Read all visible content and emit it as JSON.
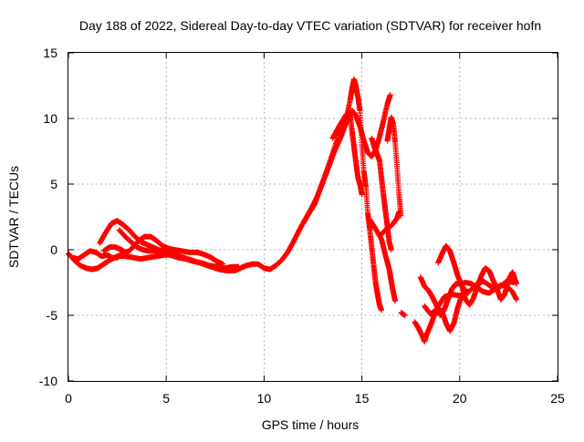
{
  "chart_data": {
    "type": "scatter",
    "title": "Day 188 of 2022, Sidereal Day-to-day VTEC variation (SDTVAR) for receiver hofn",
    "xlabel": "GPS time / hours",
    "ylabel": "SDTVAR / TECUs",
    "xlim": [
      0,
      25
    ],
    "ylim": [
      -10,
      15
    ],
    "xticks": [
      0,
      5,
      10,
      15,
      20,
      25
    ],
    "yticks": [
      -10,
      -5,
      0,
      5,
      10,
      15
    ],
    "xtick_labels": [
      "0",
      "5",
      "10",
      "15",
      "20",
      "25"
    ],
    "ytick_labels": [
      "-10",
      "-5",
      "0",
      "5",
      "10",
      "15"
    ],
    "grid": true,
    "marker": "+",
    "series": [
      {
        "name": "SDTVAR hofn",
        "color": "#ff0000",
        "segments": [
          [
            [
              0.0,
              -0.3
            ],
            [
              0.3,
              -0.8
            ],
            [
              0.6,
              -1.2
            ],
            [
              0.9,
              -1.4
            ],
            [
              1.2,
              -1.5
            ],
            [
              1.5,
              -1.4
            ],
            [
              1.8,
              -1.1
            ],
            [
              2.1,
              -0.8
            ],
            [
              2.5,
              -0.5
            ],
            [
              2.9,
              -0.5
            ],
            [
              3.3,
              -0.6
            ],
            [
              3.7,
              -0.7
            ],
            [
              4.1,
              -0.6
            ],
            [
              4.5,
              -0.5
            ],
            [
              4.9,
              -0.4
            ],
            [
              5.3,
              -0.4
            ],
            [
              5.7,
              -0.5
            ],
            [
              6.1,
              -0.7
            ],
            [
              6.5,
              -0.9
            ],
            [
              6.9,
              -1.1
            ],
            [
              7.3,
              -1.3
            ],
            [
              7.7,
              -1.5
            ],
            [
              8.1,
              -1.6
            ],
            [
              8.5,
              -1.6
            ],
            [
              8.8,
              -1.4
            ],
            [
              9.1,
              -1.2
            ],
            [
              9.4,
              -1.1
            ],
            [
              9.7,
              -1.1
            ],
            [
              10.0,
              -1.4
            ],
            [
              10.3,
              -1.5
            ],
            [
              10.6,
              -1.2
            ],
            [
              10.9,
              -0.8
            ],
            [
              11.2,
              -0.2
            ],
            [
              11.5,
              0.6
            ],
            [
              11.8,
              1.5
            ],
            [
              12.1,
              2.3
            ],
            [
              12.4,
              3.1
            ],
            [
              12.7,
              4.0
            ],
            [
              13.0,
              5.1
            ],
            [
              13.3,
              6.3
            ],
            [
              13.6,
              7.5
            ],
            [
              13.9,
              8.5
            ],
            [
              14.1,
              9.3
            ],
            [
              14.3,
              10.0
            ],
            [
              14.5,
              10.6
            ],
            [
              14.7,
              10.2
            ],
            [
              14.9,
              9.4
            ],
            [
              15.1,
              8.3
            ],
            [
              15.3,
              7.4
            ],
            [
              15.5,
              7.1
            ],
            [
              15.7,
              7.6
            ],
            [
              15.9,
              8.6
            ],
            [
              16.1,
              9.8
            ],
            [
              16.3,
              11.1
            ],
            [
              16.45,
              11.8
            ]
          ],
          [
            [
              0.2,
              -0.6
            ],
            [
              0.5,
              -0.7
            ],
            [
              0.8,
              -0.4
            ],
            [
              1.1,
              -0.1
            ],
            [
              1.4,
              -0.2
            ],
            [
              1.7,
              -0.5
            ],
            [
              2.0,
              -0.4
            ],
            [
              2.2,
              -0.6
            ],
            [
              2.5,
              -0.6
            ],
            [
              2.7,
              -0.3
            ]
          ],
          [
            [
              1.6,
              0.5
            ],
            [
              1.9,
              1.3
            ],
            [
              2.2,
              2.0
            ],
            [
              2.5,
              2.2
            ],
            [
              2.8,
              1.9
            ],
            [
              3.1,
              1.5
            ],
            [
              3.4,
              1.0
            ],
            [
              3.7,
              0.6
            ],
            [
              4.0,
              0.4
            ],
            [
              4.3,
              0.2
            ],
            [
              4.6,
              0.0
            ],
            [
              4.9,
              -0.2
            ],
            [
              5.2,
              -0.4
            ],
            [
              5.6,
              -0.6
            ],
            [
              6.0,
              -0.7
            ],
            [
              6.4,
              -0.9
            ],
            [
              6.8,
              -1.0
            ],
            [
              7.2,
              -1.2
            ],
            [
              7.6,
              -1.3
            ],
            [
              8.0,
              -1.4
            ],
            [
              8.4,
              -1.3
            ],
            [
              8.7,
              -1.3
            ]
          ],
          [
            [
              1.8,
              -0.1
            ],
            [
              2.1,
              0.2
            ],
            [
              2.4,
              0.2
            ],
            [
              2.7,
              0.0
            ],
            [
              2.9,
              -0.2
            ],
            [
              3.1,
              -0.1
            ],
            [
              3.3,
              0.2
            ],
            [
              3.6,
              0.7
            ],
            [
              3.9,
              1.0
            ],
            [
              4.2,
              1.0
            ],
            [
              4.5,
              0.7
            ],
            [
              4.8,
              0.3
            ],
            [
              5.1,
              0.1
            ],
            [
              5.4,
              0.0
            ],
            [
              5.8,
              -0.1
            ],
            [
              6.2,
              -0.2
            ],
            [
              6.6,
              -0.2
            ],
            [
              7.0,
              -0.4
            ],
            [
              7.3,
              -0.6
            ],
            [
              7.6,
              -0.9
            ],
            [
              7.9,
              -1.1
            ]
          ],
          [
            [
              2.6,
              1.5
            ],
            [
              2.9,
              1.0
            ],
            [
              3.2,
              0.6
            ],
            [
              3.5,
              0.2
            ],
            [
              3.8,
              0.0
            ],
            [
              4.1,
              -0.1
            ],
            [
              4.4,
              -0.1
            ],
            [
              4.7,
              -0.1
            ],
            [
              5.0,
              -0.2
            ],
            [
              5.5,
              -0.3
            ]
          ],
          [
            [
              12.0,
              2.0
            ],
            [
              12.3,
              2.8
            ],
            [
              12.6,
              3.5
            ],
            [
              12.9,
              4.8
            ],
            [
              13.2,
              6.0
            ],
            [
              13.5,
              7.3
            ],
            [
              13.8,
              8.7
            ],
            [
              14.0,
              9.8
            ],
            [
              14.2,
              10.3
            ],
            [
              14.4,
              10.4
            ],
            [
              14.5,
              9.0
            ],
            [
              14.6,
              7.8
            ],
            [
              14.7,
              6.6
            ],
            [
              14.8,
              5.5
            ],
            [
              14.9,
              5.0
            ],
            [
              15.0,
              4.2
            ]
          ],
          [
            [
              13.5,
              8.5
            ],
            [
              13.8,
              9.3
            ],
            [
              14.0,
              9.8
            ],
            [
              14.2,
              10.0
            ],
            [
              14.4,
              11.4
            ],
            [
              14.5,
              12.3
            ],
            [
              14.6,
              13.0
            ],
            [
              14.7,
              12.4
            ],
            [
              14.8,
              11.6
            ],
            [
              14.9,
              10.6
            ],
            [
              15.0,
              8.0
            ],
            [
              15.1,
              6.0
            ],
            [
              15.2,
              4.8
            ],
            [
              15.3,
              2.8
            ],
            [
              15.4,
              1.6
            ],
            [
              15.5,
              0.2
            ],
            [
              15.6,
              -1.2
            ],
            [
              15.7,
              -2.5
            ],
            [
              15.8,
              -3.4
            ],
            [
              15.9,
              -4.2
            ],
            [
              16.0,
              -4.6
            ]
          ],
          [
            [
              15.5,
              8.5
            ],
            [
              15.6,
              8.0
            ],
            [
              15.7,
              7.6
            ],
            [
              15.8,
              7.2
            ],
            [
              15.9,
              6.8
            ],
            [
              16.0,
              5.5
            ],
            [
              16.1,
              4.2
            ],
            [
              16.2,
              3.0
            ],
            [
              16.3,
              1.8
            ],
            [
              16.4,
              0.6
            ],
            [
              16.5,
              0.0
            ]
          ],
          [
            [
              15.4,
              2.3
            ],
            [
              15.7,
              1.6
            ],
            [
              16.0,
              0.8
            ],
            [
              16.2,
              -0.4
            ],
            [
              16.4,
              -1.5
            ],
            [
              16.5,
              -2.4
            ],
            [
              16.6,
              -3.2
            ],
            [
              16.7,
              -3.9
            ]
          ],
          [
            [
              16.0,
              1.2
            ],
            [
              16.2,
              1.5
            ],
            [
              16.4,
              1.7
            ],
            [
              16.6,
              2.0
            ],
            [
              16.8,
              2.4
            ],
            [
              16.9,
              2.9
            ]
          ],
          [
            [
              16.3,
              8.3
            ],
            [
              16.4,
              9.2
            ],
            [
              16.5,
              10.1
            ],
            [
              16.6,
              9.6
            ],
            [
              16.7,
              8.2
            ],
            [
              16.8,
              6.2
            ],
            [
              16.9,
              4.2
            ],
            [
              17.0,
              2.6
            ]
          ],
          [
            [
              17.0,
              -4.8
            ],
            [
              17.2,
              -5.0
            ]
          ],
          [
            [
              17.7,
              -5.5
            ],
            [
              17.9,
              -6.0
            ],
            [
              18.1,
              -6.6
            ],
            [
              18.2,
              -7.0
            ],
            [
              18.3,
              -6.5
            ],
            [
              18.5,
              -5.8
            ],
            [
              18.7,
              -5.0
            ],
            [
              18.9,
              -4.5
            ],
            [
              19.1,
              -4.7
            ],
            [
              19.3,
              -5.6
            ],
            [
              19.5,
              -6.2
            ],
            [
              19.7,
              -5.6
            ],
            [
              19.9,
              -4.4
            ],
            [
              20.1,
              -3.5
            ],
            [
              20.3,
              -3.0
            ]
          ],
          [
            [
              18.0,
              -2.1
            ],
            [
              18.2,
              -2.8
            ],
            [
              18.4,
              -3.1
            ],
            [
              18.6,
              -3.6
            ],
            [
              18.8,
              -4.2
            ],
            [
              19.0,
              -5.0
            ],
            [
              19.2,
              -4.6
            ],
            [
              19.4,
              -3.8
            ],
            [
              19.6,
              -3.0
            ],
            [
              19.8,
              -2.6
            ],
            [
              20.0,
              -2.6
            ],
            [
              20.3,
              -2.5
            ],
            [
              20.6,
              -2.6
            ],
            [
              20.9,
              -2.9
            ],
            [
              21.2,
              -3.2
            ],
            [
              21.5,
              -3.3
            ],
            [
              21.8,
              -3.0
            ],
            [
              22.1,
              -2.7
            ],
            [
              22.4,
              -2.8
            ],
            [
              22.7,
              -3.2
            ],
            [
              22.9,
              -3.8
            ]
          ],
          [
            [
              18.9,
              -1.0
            ],
            [
              19.1,
              -0.3
            ],
            [
              19.3,
              0.3
            ],
            [
              19.5,
              -0.1
            ],
            [
              19.7,
              -1.0
            ],
            [
              19.9,
              -2.0
            ],
            [
              20.1,
              -2.7
            ],
            [
              20.3,
              -3.8
            ],
            [
              20.5,
              -4.2
            ],
            [
              20.7,
              -3.7
            ],
            [
              20.9,
              -2.8
            ],
            [
              21.1,
              -2.0
            ],
            [
              21.3,
              -1.4
            ],
            [
              21.5,
              -1.6
            ],
            [
              21.7,
              -2.3
            ],
            [
              21.9,
              -3.0
            ],
            [
              22.1,
              -3.8
            ],
            [
              22.3,
              -3.4
            ],
            [
              22.5,
              -2.3
            ],
            [
              22.7,
              -1.7
            ],
            [
              22.9,
              -2.6
            ]
          ],
          [
            [
              18.2,
              -4.3
            ],
            [
              18.5,
              -4.9
            ],
            [
              18.8,
              -4.6
            ],
            [
              19.2,
              -3.6
            ],
            [
              19.6,
              -3.4
            ],
            [
              20.0,
              -3.5
            ],
            [
              20.4,
              -3.3
            ],
            [
              20.8,
              -2.7
            ],
            [
              21.2,
              -2.4
            ],
            [
              21.6,
              -2.8
            ],
            [
              22.0,
              -2.9
            ],
            [
              22.4,
              -2.4
            ],
            [
              22.8,
              -2.5
            ]
          ]
        ]
      }
    ]
  }
}
